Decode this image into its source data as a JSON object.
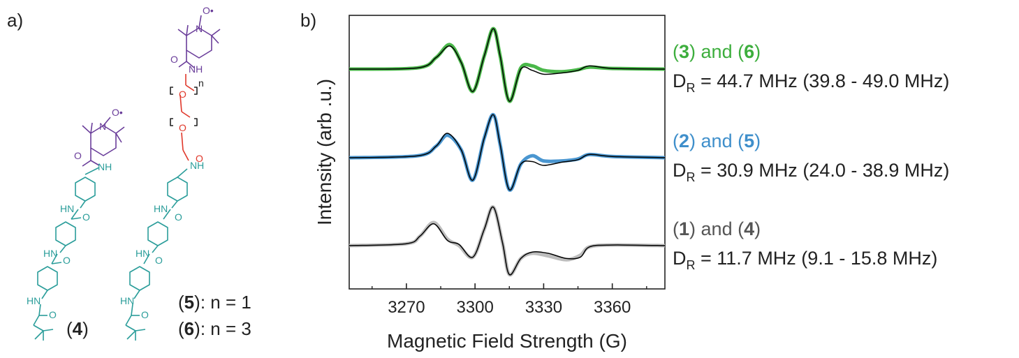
{
  "panels": {
    "a": "a)",
    "b": "b)"
  },
  "structures": {
    "compound4": {
      "number": "4"
    },
    "tempo_labels": [
      "O•",
      "N",
      "NH",
      "O"
    ],
    "amide_labels": [
      "NH",
      "O",
      "HN",
      "O",
      "HN",
      "O",
      "HN",
      "O"
    ],
    "linker_labels": [
      "n",
      "O",
      "O",
      "O"
    ],
    "series_label_5": {
      "number": "5",
      "text": ": n = 1"
    },
    "series_label_6": {
      "number": "6",
      "text": ": n = 3"
    }
  },
  "colors": {
    "tempo": "#6a3d9a",
    "backbone": "#2a9d9a",
    "linker": "#e0382b",
    "green": "#4ab84a",
    "blue": "#4a96d0",
    "gray": "#bdbdbd",
    "fit": "#000000",
    "text_green": "#3dae3d",
    "text_blue": "#3f8fcb",
    "text_gray": "#555555"
  },
  "chart_data": {
    "type": "line",
    "xlabel": "Magnetic Field Strength (G)",
    "ylabel": "Intensity (arb .u.)",
    "xlim": [
      3245,
      3383
    ],
    "xticks": [
      3270,
      3300,
      3330,
      3360
    ],
    "x_minor_ticks": [
      3255,
      3285,
      3315,
      3345,
      3375
    ],
    "grid": false,
    "series": [
      {
        "pair": [
          "3",
          "6"
        ],
        "connector": "and",
        "color_key": "green",
        "dr_label": "D",
        "dr_sub": "R",
        "dr_text": " = 44.7 MHz (39.8 - 49.0 MHz)",
        "x": [
          3245,
          3275,
          3283,
          3289,
          3294,
          3299,
          3304,
          3308,
          3311,
          3315,
          3320,
          3325,
          3330,
          3338,
          3345,
          3350,
          3360,
          3383
        ],
        "exp": [
          0.0,
          0.02,
          0.18,
          0.38,
          0.1,
          -0.35,
          0.2,
          0.63,
          0.2,
          -0.5,
          0.02,
          0.05,
          -0.02,
          -0.04,
          -0.01,
          0.03,
          0.01,
          0.0
        ],
        "fit": [
          0.0,
          0.02,
          0.18,
          0.36,
          0.1,
          -0.35,
          0.2,
          0.63,
          0.2,
          -0.5,
          0.0,
          -0.02,
          -0.08,
          -0.06,
          -0.02,
          0.05,
          0.01,
          0.0
        ]
      },
      {
        "pair": [
          "2",
          "5"
        ],
        "connector": "and",
        "color_key": "blue",
        "dr_label": "D",
        "dr_sub": "R",
        "dr_text": " = 30.9 MHz (24.0 - 38.9 MHz)",
        "x": [
          3245,
          3275,
          3283,
          3288,
          3294,
          3299,
          3304,
          3308,
          3311,
          3315,
          3320,
          3325,
          3330,
          3338,
          3345,
          3350,
          3360,
          3383
        ],
        "exp": [
          0.0,
          0.03,
          0.18,
          0.35,
          0.12,
          -0.35,
          0.3,
          0.67,
          0.2,
          -0.5,
          -0.1,
          0.03,
          -0.05,
          -0.05,
          -0.02,
          0.05,
          0.02,
          0.0
        ],
        "fit": [
          0.0,
          0.03,
          0.18,
          0.38,
          0.12,
          -0.35,
          0.3,
          0.67,
          0.2,
          -0.5,
          -0.1,
          -0.06,
          -0.12,
          -0.07,
          -0.03,
          0.05,
          0.02,
          0.0
        ]
      },
      {
        "pair": [
          "1",
          "4"
        ],
        "connector": "and",
        "color_key": "gray",
        "dr_label": "D",
        "dr_sub": "R",
        "dr_text": " = 11.7 MHz (9.1 - 15.8 MHz)",
        "x": [
          3245,
          3270,
          3276,
          3282,
          3288,
          3293,
          3299,
          3304,
          3308,
          3312,
          3315,
          3320,
          3325,
          3332,
          3340,
          3346,
          3350,
          3360,
          3383
        ],
        "exp": [
          0.0,
          0.03,
          0.15,
          0.36,
          0.1,
          0.0,
          -0.18,
          0.25,
          0.6,
          0.05,
          -0.45,
          -0.2,
          -0.12,
          -0.16,
          -0.22,
          -0.15,
          -0.02,
          0.01,
          0.0
        ],
        "fit": [
          0.0,
          0.03,
          0.15,
          0.34,
          0.08,
          0.02,
          -0.18,
          0.25,
          0.6,
          0.05,
          -0.45,
          -0.2,
          -0.1,
          -0.12,
          -0.2,
          -0.18,
          -0.02,
          0.01,
          0.0
        ]
      }
    ]
  }
}
